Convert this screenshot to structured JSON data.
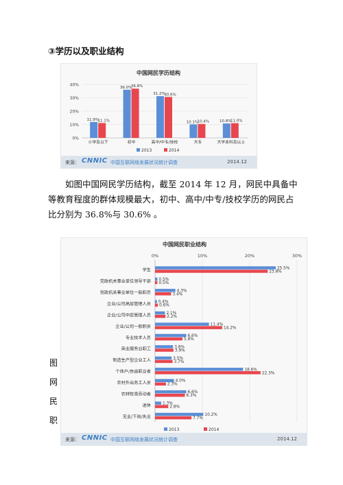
{
  "heading": "③学历以及职业结构",
  "paragraph": "如图中国网民学历结构，截至 2014 年 12 月，网民中具备中等教育程度的群体规模最大，初中、高中/中专/技校学历的网民占比分别为 36.8%与 30.6% 。",
  "side_chars": [
    "图",
    "网",
    "民",
    "职"
  ],
  "footer": {
    "source_label": "来源：",
    "logo": "CNNIC",
    "org": "中国互联网络发展状况统计调查",
    "date": "2014.12"
  },
  "colors": {
    "s2013": "#5b8ed6",
    "s2014": "#e8464e"
  },
  "chart_data": [
    {
      "type": "bar",
      "title": "中国网民学历结构",
      "categories": [
        "小学及以下",
        "初中",
        "高中/中专/技校",
        "大专",
        "大学本科及以上"
      ],
      "series": [
        {
          "name": "2013",
          "values": [
            11.9,
            36.0,
            31.2,
            10.1,
            10.8
          ]
        },
        {
          "name": "2014",
          "values": [
            11.1,
            36.8,
            30.6,
            10.4,
            11.0
          ]
        }
      ],
      "value_labels": [
        [
          "11.9%",
          "36.0%",
          "31.2%",
          "10.1%",
          "10.8%"
        ],
        [
          "11.1%",
          "36.8%",
          "30.6%",
          "10.4%",
          "11.0%"
        ]
      ],
      "yticks": [
        "0%",
        "10%",
        "20%",
        "30%",
        "40%"
      ],
      "ylim": [
        0,
        40
      ],
      "legend": "bottom"
    },
    {
      "type": "bar",
      "orientation": "horizontal",
      "title": "中国网民职业结构",
      "categories": [
        "学生",
        "党政机关事业单位领导干部",
        "党政机关事业单位一般职员",
        "企业/公司高层管理人员",
        "企业/公司中层管理人员",
        "企业/公司一般职员",
        "专业技术人员",
        "商业服务业职工",
        "制造生产型企业工人",
        "个体户/自由职业者",
        "农村外出务工人员",
        "农林牧渔劳动者",
        "退休",
        "无业/下岗/失业"
      ],
      "series": [
        {
          "name": "2013",
          "values": [
            25.5,
            0.5,
            4.3,
            0.4,
            2.1,
            11.4,
            6.6,
            3.8,
            3.5,
            18.6,
            4.0,
            6.6,
            1.3,
            10.2
          ]
        },
        {
          "name": "2014",
          "values": [
            23.8,
            0.5,
            3.4,
            0.6,
            2.2,
            14.2,
            5.8,
            3.9,
            3.7,
            22.3,
            2.3,
            6.3,
            2.8,
            7.7
          ]
        }
      ],
      "value_labels": [
        [
          "25.5%",
          "0.5%",
          "4.3%",
          "0.4%",
          "2.1%",
          "11.4%",
          "6.6%",
          "3.8%",
          "3.5%",
          "18.6%",
          "4.0%",
          "6.6%",
          "1.3%",
          "10.2%"
        ],
        [
          "23.8%",
          "0.5%",
          "3.4%",
          "0.6%",
          "2.2%",
          "14.2%",
          "5.8%",
          "3.9%",
          "3.7%",
          "22.3%",
          "2.3%",
          "6.3%",
          "2.8%",
          "7.7%"
        ]
      ],
      "xticks": [
        "0%",
        "10%",
        "20%",
        "30%"
      ],
      "xlim": [
        0,
        30
      ],
      "legend": "bottom"
    }
  ]
}
